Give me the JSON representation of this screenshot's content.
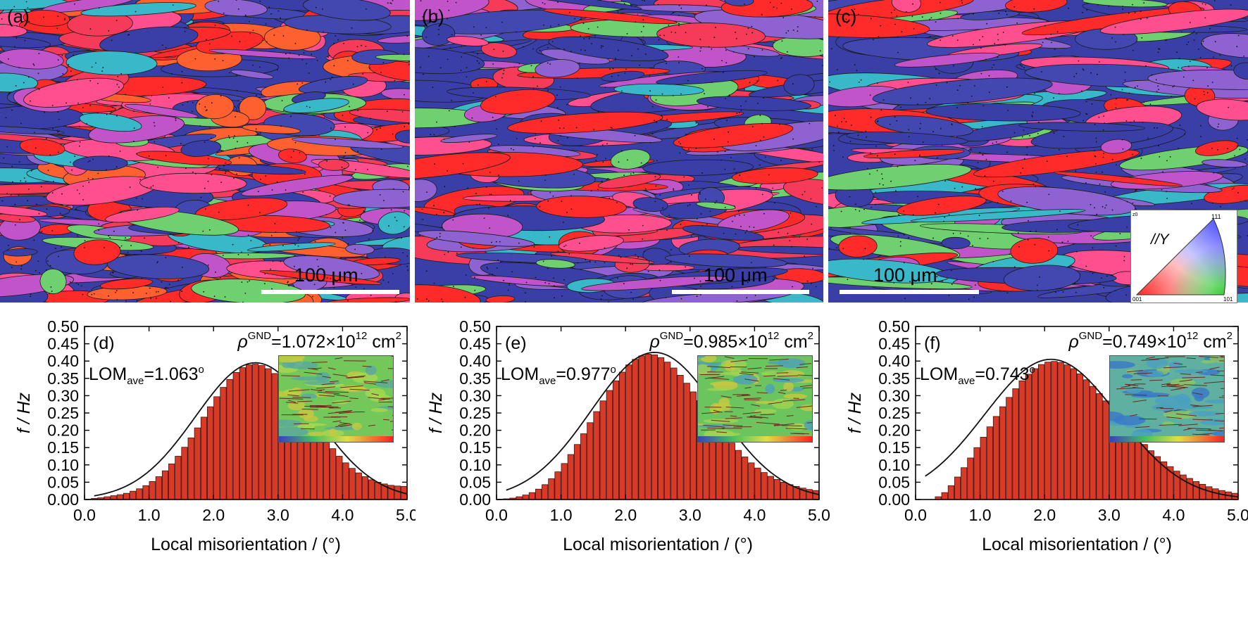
{
  "maps": [
    {
      "label": "(a)",
      "scale": "100 μm"
    },
    {
      "label": "(b)",
      "scale": "100 μm"
    },
    {
      "label": "(c)",
      "scale": "100 μm"
    }
  ],
  "ipf_key": {
    "axis": "//Y",
    "top_right": "111",
    "bottom_left": "001",
    "bottom_right": "101",
    "top_left": "z0"
  },
  "chart_data": [
    {
      "type": "bar",
      "panel": "(d)",
      "rho_prefix": "ρ",
      "rho_sup": "GND",
      "rho_value": "=1.072×10",
      "rho_exp": "12",
      "rho_unit": " cm",
      "rho_unit_exp": "2",
      "lom_prefix": "LOM",
      "lom_sub": "ave",
      "lom_value": "=1.063",
      "lom_deg": "o",
      "xlabel": "Local misorientation / (°)",
      "ylabel": "f / Hz",
      "xlim": [
        0,
        5
      ],
      "ylim": [
        0,
        0.5
      ],
      "xticks": [
        "0.0",
        "1.0",
        "2.0",
        "3.0",
        "4.0",
        "5.0"
      ],
      "yticks": [
        "0.00",
        "0.05",
        "0.10",
        "0.15",
        "0.20",
        "0.25",
        "0.30",
        "0.35",
        "0.40",
        "0.45",
        "0.50"
      ],
      "bin_width": 0.1,
      "x": [
        0.05,
        0.15,
        0.25,
        0.35,
        0.45,
        0.55,
        0.65,
        0.75,
        0.85,
        0.95,
        1.05,
        1.15,
        1.25,
        1.35,
        1.45,
        1.55,
        1.65,
        1.75,
        1.85,
        1.95,
        2.05,
        2.15,
        2.25,
        2.35,
        2.45,
        2.55,
        2.65,
        2.75,
        2.85,
        2.95,
        3.05,
        3.15,
        3.25,
        3.35,
        3.45,
        3.55,
        3.65,
        3.75,
        3.85,
        3.95,
        4.05,
        4.15,
        4.25,
        4.35,
        4.45,
        4.55,
        4.65,
        4.75,
        4.85,
        4.95
      ],
      "values": [
        0.001,
        0.003,
        0.005,
        0.008,
        0.011,
        0.014,
        0.018,
        0.024,
        0.031,
        0.04,
        0.052,
        0.066,
        0.083,
        0.103,
        0.125,
        0.151,
        0.178,
        0.207,
        0.238,
        0.268,
        0.297,
        0.324,
        0.347,
        0.367,
        0.381,
        0.389,
        0.391,
        0.387,
        0.378,
        0.364,
        0.346,
        0.325,
        0.301,
        0.275,
        0.249,
        0.222,
        0.196,
        0.171,
        0.147,
        0.125,
        0.106,
        0.09,
        0.077,
        0.066,
        0.057,
        0.05,
        0.045,
        0.041,
        0.039,
        0.038
      ],
      "fit": {
        "type": "gaussian",
        "peak": 0.395,
        "center": 2.65,
        "sigma": 0.93
      }
    },
    {
      "type": "bar",
      "panel": "(e)",
      "rho_prefix": "ρ",
      "rho_sup": "GND",
      "rho_value": "=0.985×10",
      "rho_exp": "12",
      "rho_unit": " cm",
      "rho_unit_exp": "2",
      "lom_prefix": "LOM",
      "lom_sub": "ave",
      "lom_value": "=0.977",
      "lom_deg": "o",
      "xlabel": "Local misorientation / (°)",
      "ylabel": "f / Hz",
      "xlim": [
        0,
        5
      ],
      "ylim": [
        0,
        0.5
      ],
      "xticks": [
        "0.0",
        "1.0",
        "2.0",
        "3.0",
        "4.0",
        "5.0"
      ],
      "yticks": [
        "0.00",
        "0.05",
        "0.10",
        "0.15",
        "0.20",
        "0.25",
        "0.30",
        "0.35",
        "0.40",
        "0.45",
        "0.50"
      ],
      "bin_width": 0.1,
      "x": [
        0.05,
        0.15,
        0.25,
        0.35,
        0.45,
        0.55,
        0.65,
        0.75,
        0.85,
        0.95,
        1.05,
        1.15,
        1.25,
        1.35,
        1.45,
        1.55,
        1.65,
        1.75,
        1.85,
        1.95,
        2.05,
        2.15,
        2.25,
        2.35,
        2.45,
        2.55,
        2.65,
        2.75,
        2.85,
        2.95,
        3.05,
        3.15,
        3.25,
        3.35,
        3.45,
        3.55,
        3.65,
        3.75,
        3.85,
        3.95,
        4.05,
        4.15,
        4.25,
        4.35,
        4.45,
        4.55,
        4.65,
        4.75,
        4.85,
        4.95
      ],
      "values": [
        0.001,
        0.002,
        0.004,
        0.008,
        0.013,
        0.02,
        0.03,
        0.043,
        0.06,
        0.08,
        0.104,
        0.13,
        0.159,
        0.19,
        0.222,
        0.254,
        0.285,
        0.315,
        0.343,
        0.368,
        0.389,
        0.405,
        0.415,
        0.42,
        0.418,
        0.41,
        0.397,
        0.38,
        0.359,
        0.336,
        0.311,
        0.286,
        0.26,
        0.234,
        0.209,
        0.185,
        0.163,
        0.142,
        0.123,
        0.106,
        0.091,
        0.078,
        0.067,
        0.058,
        0.05,
        0.043,
        0.038,
        0.033,
        0.029,
        0.026
      ],
      "fit": {
        "type": "gaussian",
        "peak": 0.425,
        "center": 2.45,
        "sigma": 0.98
      }
    },
    {
      "type": "bar",
      "panel": "(f)",
      "rho_prefix": "ρ",
      "rho_sup": "GND",
      "rho_value": "=0.749×10",
      "rho_exp": "12",
      "rho_unit": " cm",
      "rho_unit_exp": "2",
      "lom_prefix": "LOM",
      "lom_sub": "ave",
      "lom_value": "=0.743",
      "lom_deg": "o",
      "xlabel": "Local misorientation / (°)",
      "ylabel": "f / Hz",
      "xlim": [
        0,
        5
      ],
      "ylim": [
        0,
        0.5
      ],
      "xticks": [
        "0.0",
        "1.0",
        "2.0",
        "3.0",
        "4.0",
        "5.0"
      ],
      "yticks": [
        "0.00",
        "0.05",
        "0.10",
        "0.15",
        "0.20",
        "0.25",
        "0.30",
        "0.35",
        "0.40",
        "0.45",
        "0.50"
      ],
      "bin_width": 0.1,
      "x": [
        0.35,
        0.45,
        0.55,
        0.65,
        0.75,
        0.85,
        0.95,
        1.05,
        1.15,
        1.25,
        1.35,
        1.45,
        1.55,
        1.65,
        1.75,
        1.85,
        1.95,
        2.05,
        2.15,
        2.25,
        2.35,
        2.45,
        2.55,
        2.65,
        2.75,
        2.85,
        2.95,
        3.05,
        3.15,
        3.25,
        3.35,
        3.45,
        3.55,
        3.65,
        3.75,
        3.85,
        3.95,
        4.05,
        4.15,
        4.25,
        4.35,
        4.45,
        4.55,
        4.65,
        4.75,
        4.85,
        4.95
      ],
      "values": [
        0.008,
        0.02,
        0.04,
        0.065,
        0.092,
        0.12,
        0.15,
        0.18,
        0.21,
        0.24,
        0.268,
        0.295,
        0.32,
        0.343,
        0.362,
        0.378,
        0.39,
        0.397,
        0.399,
        0.396,
        0.389,
        0.378,
        0.363,
        0.346,
        0.327,
        0.306,
        0.285,
        0.263,
        0.241,
        0.219,
        0.198,
        0.178,
        0.159,
        0.141,
        0.124,
        0.109,
        0.095,
        0.082,
        0.071,
        0.061,
        0.052,
        0.044,
        0.037,
        0.031,
        0.026,
        0.022,
        0.018
      ],
      "fit": {
        "type": "gaussian",
        "peak": 0.405,
        "center": 2.1,
        "sigma": 1.03
      }
    }
  ]
}
